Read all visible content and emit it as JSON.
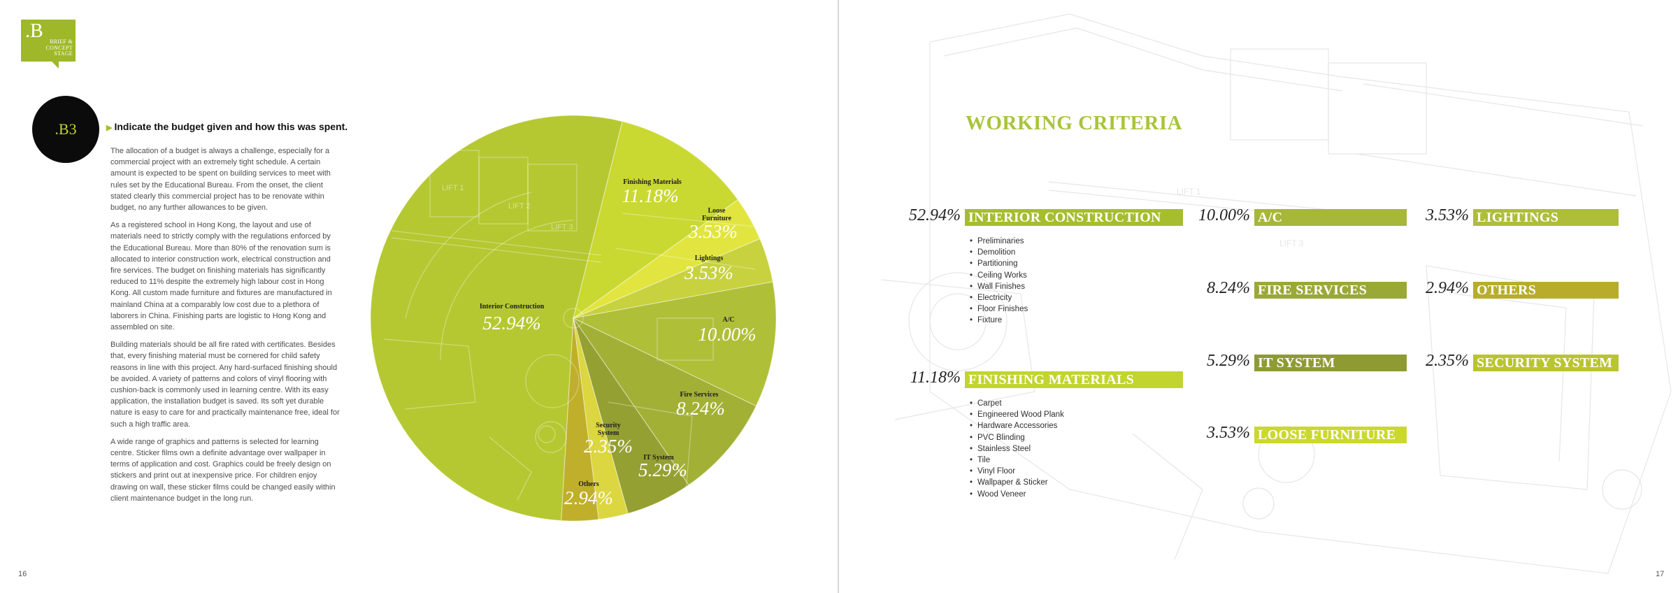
{
  "left_page": {
    "logo": {
      "mark": ".B",
      "lines": [
        "BRIEF &",
        "CONCEPT",
        "STAGE"
      ]
    },
    "section_code": ".B3",
    "question": "Indicate the budget given and how this was spent.",
    "paragraphs": [
      "The allocation of a budget is always a challenge, especially for a commercial project with an extremely tight schedule. A certain amount is expected to be spent on building services to meet with rules set by the Educational Bureau. From the onset, the client stated clearly this commercial project has to be renovate within budget, no any further allowances to be given.",
      "As a registered school in Hong Kong, the layout and use of materials need to strictly comply with the regulations enforced by the Educational Bureau. More than 80% of the renovation sum is allocated to interior construction work, electrical construction and fire services. The budget on finishing materials has significantly reduced to 11% despite the extremely high labour cost in Hong Kong. All custom made furniture and fixtures are manufactured in mainland China at a comparably low cost due to a plethora of laborers in China. Finishing parts are logistic to Hong Kong and assembled on site.",
      "Building materials should be all fire rated with certificates. Besides that, every finishing material must be cornered for child safety reasons in line with this project. Any hard-surfaced finishing should be avoided. A variety of patterns and colors of vinyl flooring with cushion-back is commonly used in learning centre. With its easy application, the installation budget is saved. Its soft yet durable nature is easy to care for and practically maintenance free, ideal for such a high traffic area.",
      "A wide range of graphics and patterns is selected for learning centre. Sticker films own a definite advantage over wallpaper in terms of application and cost. Graphics could be freely design on stickers and print out at inexpensive price. For children enjoy drawing on wall, these sticker films could be changed easily within client maintenance budget in the long run."
    ],
    "page_number": "16",
    "plan_room_labels": [
      "LIFT 1",
      "LIFT 2",
      "LIFT 3"
    ]
  },
  "chart_data": {
    "type": "pie",
    "title": "",
    "slices": [
      {
        "name": "Interior Construction",
        "label": "52.94%",
        "value": 52.94,
        "color": "#b5c832"
      },
      {
        "name": "Finishing Materials",
        "label": "11.18%",
        "value": 11.18,
        "color": "#cad832"
      },
      {
        "name": "Loose Furniture",
        "label": "3.53%",
        "value": 3.53,
        "color": "#e2e540"
      },
      {
        "name": "Lightings",
        "label": "3.53%",
        "value": 3.53,
        "color": "#c7d23e"
      },
      {
        "name": "A/C",
        "label": "10.00%",
        "value": 10.0,
        "color": "#b0bf38"
      },
      {
        "name": "Fire Services",
        "label": "8.24%",
        "value": 8.24,
        "color": "#a3b036"
      },
      {
        "name": "IT System",
        "label": "5.29%",
        "value": 5.29,
        "color": "#95a032"
      },
      {
        "name": "Security System",
        "label": "2.35%",
        "value": 2.35,
        "color": "#dcd640"
      },
      {
        "name": "Others",
        "label": "2.94%",
        "value": 2.94,
        "color": "#c0af2a"
      }
    ]
  },
  "right_page": {
    "title": "WORKING CRITERIA",
    "page_number": "17",
    "plan_room_labels": [
      "LIFT 1",
      "LIFT 3"
    ],
    "criteria": {
      "interior_construction": {
        "pct": "52.94%",
        "label": "INTERIOR CONSTRUCTION",
        "color": "#a6bd2e"
      },
      "finishing_materials": {
        "pct": "11.18%",
        "label": "FINISHING MATERIALS",
        "color": "#c2d430"
      },
      "ac": {
        "pct": "10.00%",
        "label": "A/C",
        "color": "#a6b739"
      },
      "fire_services": {
        "pct": "8.24%",
        "label": "FIRE SERVICES",
        "color": "#9aa936"
      },
      "it_system": {
        "pct": "5.29%",
        "label": "IT SYSTEM",
        "color": "#8e9b32"
      },
      "loose_furniture": {
        "pct": "3.53%",
        "label": "LOOSE FURNITURE",
        "color": "#cad82f"
      },
      "lightings": {
        "pct": "3.53%",
        "label": "LIGHTINGS",
        "color": "#aebd3a"
      },
      "others": {
        "pct": "2.94%",
        "label": "OTHERS",
        "color": "#b7ad2b"
      },
      "security_system": {
        "pct": "2.35%",
        "label": "SECURITY SYSTEM",
        "color": "#b9c431"
      }
    },
    "interior_list": [
      "Preliminaries",
      "Demolition",
      "Partitioning",
      "Ceiling Works",
      "Wall Finishes",
      "Electricity",
      "Floor Finishes",
      "Fixture"
    ],
    "finishing_list": [
      "Carpet",
      "Engineered Wood Plank",
      "Hardware Accessories",
      "PVC Blinding",
      "Stainless Steel",
      "Tile",
      "Vinyl Floor",
      "Wallpaper & Sticker",
      "Wood Veneer"
    ]
  }
}
